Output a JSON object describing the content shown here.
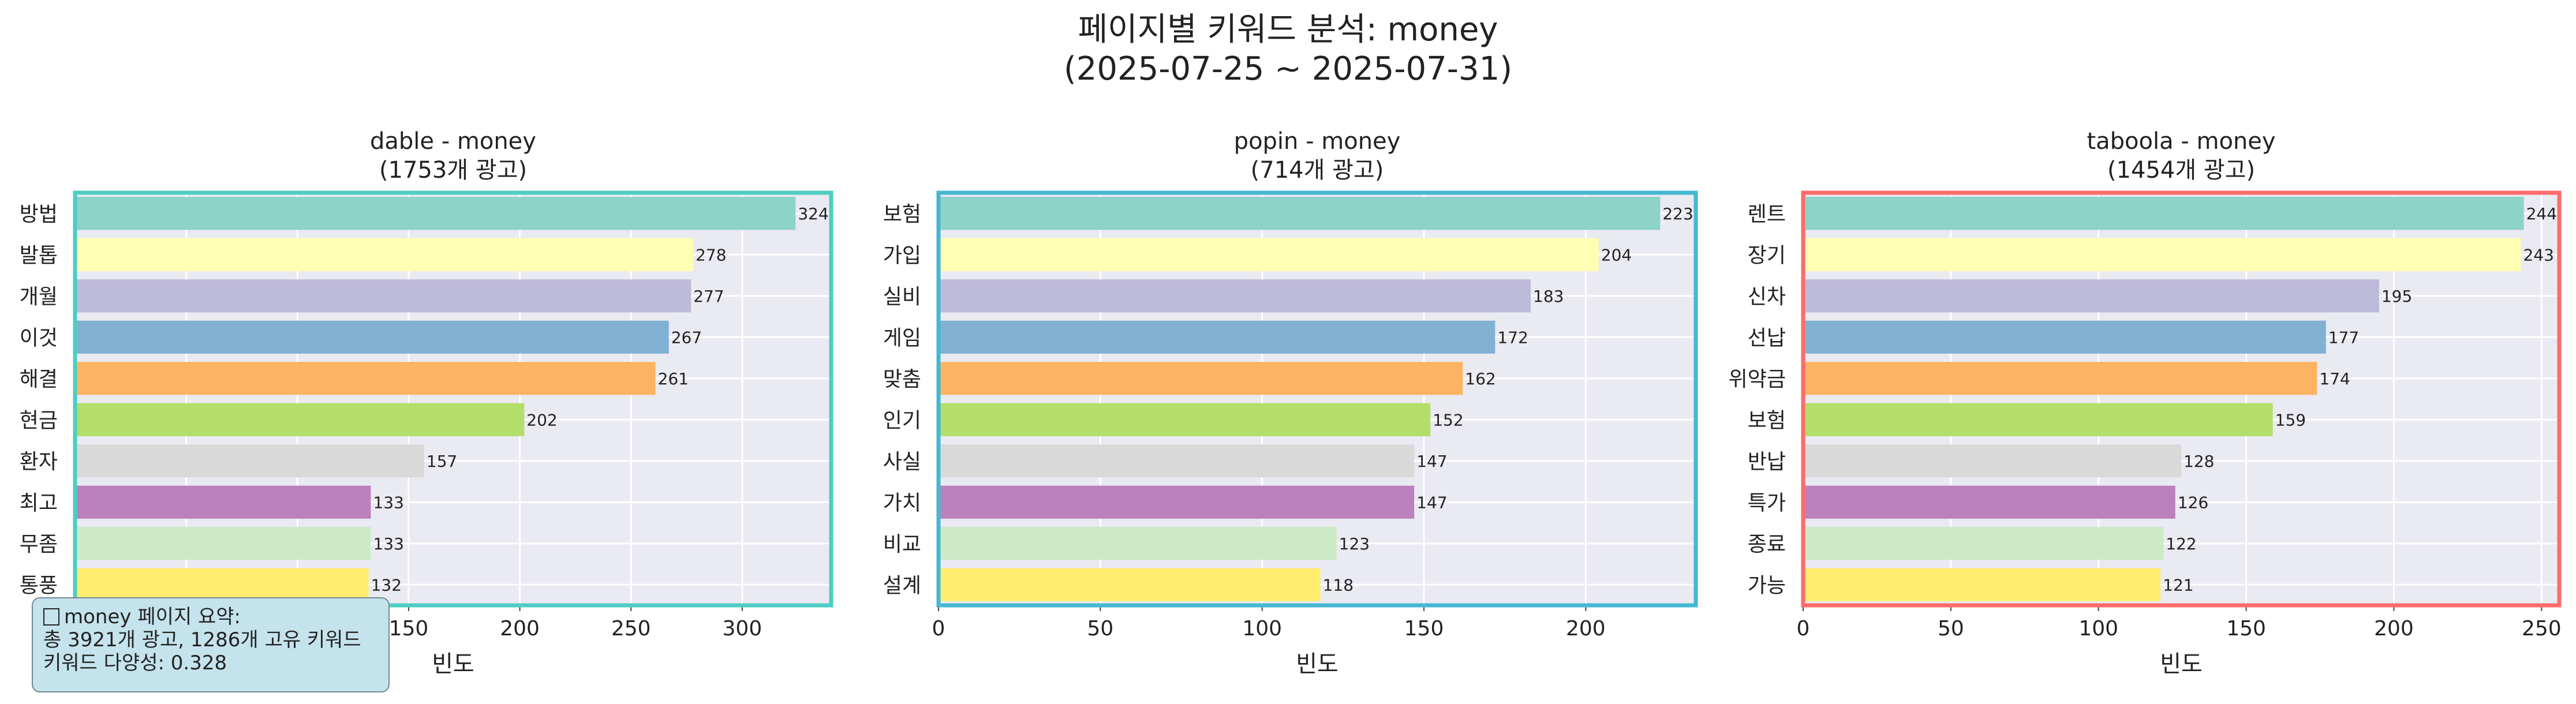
{
  "title": "페이지별 키워드 분석: money\n(2025-07-25 ~ 2025-07-31)",
  "summary": {
    "line1": "money 페이지 요약:",
    "line2": "총 3921개 광고, 1286개 고유 키워드",
    "line3": "키워드 다양성: 0.328"
  },
  "bar_colors": [
    "#8dd3c7",
    "#ffffb3",
    "#bebada",
    "#80b1d3",
    "#fdb462",
    "#b3de69",
    "#d9d9d9",
    "#bc80bd",
    "#ccebc5",
    "#ffed6f"
  ],
  "chart_data": [
    {
      "type": "bar",
      "orientation": "horizontal",
      "title": "dable - money\n(1753개 광고)",
      "xlabel": "빈도",
      "ylabel": "",
      "frame_color": "#4ecdc4",
      "xlim": [
        0,
        340
      ],
      "xticks": [
        0,
        50,
        100,
        150,
        200,
        250,
        300
      ],
      "categories": [
        "방법",
        "발톱",
        "개월",
        "이것",
        "해결",
        "현금",
        "환자",
        "최고",
        "무좀",
        "통풍"
      ],
      "values": [
        324,
        278,
        277,
        267,
        261,
        202,
        157,
        133,
        133,
        132
      ],
      "grid": true
    },
    {
      "type": "bar",
      "orientation": "horizontal",
      "title": "popin - money\n(714개 광고)",
      "xlabel": "빈도",
      "ylabel": "",
      "frame_color": "#45b7d1",
      "xlim": [
        0,
        234
      ],
      "xticks": [
        0,
        50,
        100,
        150,
        200
      ],
      "categories": [
        "보험",
        "가입",
        "실비",
        "게임",
        "맞춤",
        "인기",
        "사실",
        "가치",
        "비교",
        "설계"
      ],
      "values": [
        223,
        204,
        183,
        172,
        162,
        152,
        147,
        147,
        123,
        118
      ],
      "grid": true
    },
    {
      "type": "bar",
      "orientation": "horizontal",
      "title": "taboola - money\n(1454개 광고)",
      "xlabel": "빈도",
      "ylabel": "",
      "frame_color": "#ff6b6b",
      "xlim": [
        0,
        256
      ],
      "xticks": [
        0,
        50,
        100,
        150,
        200,
        250
      ],
      "categories": [
        "렌트",
        "장기",
        "신차",
        "선납",
        "위약금",
        "보험",
        "반납",
        "특가",
        "종료",
        "가능"
      ],
      "values": [
        244,
        243,
        195,
        177,
        174,
        159,
        128,
        126,
        122,
        121
      ],
      "grid": true
    }
  ]
}
